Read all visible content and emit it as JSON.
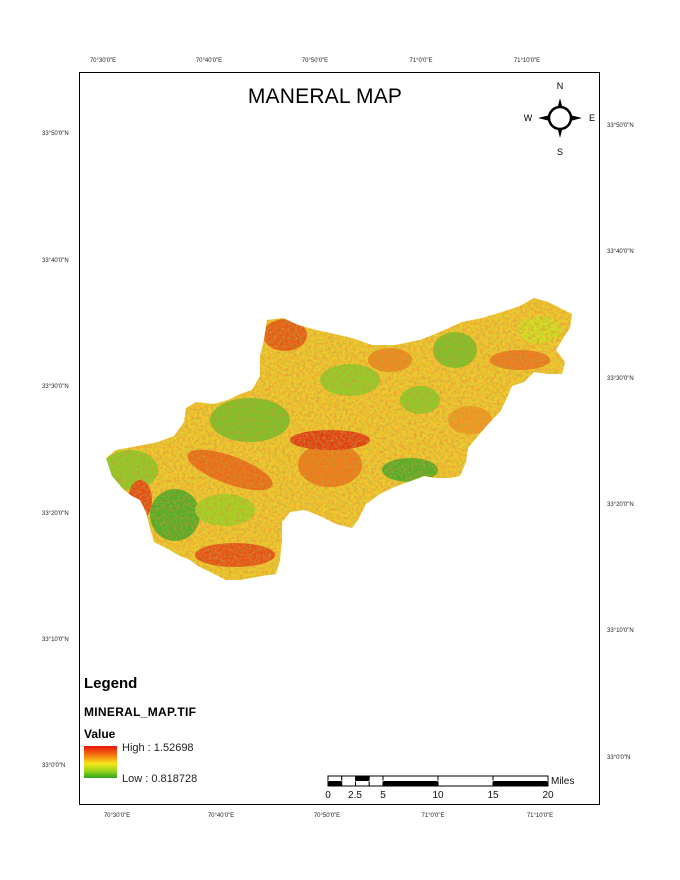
{
  "map": {
    "title": "MANERAL MAP",
    "grid": {
      "top_labels": [
        "70°30'0\"E",
        "70°40'0\"E",
        "70°50'0\"E",
        "71°0'0\"E",
        "71°10'0\"E"
      ],
      "bottom_labels": [
        "70°30'0\"E",
        "70°40'0\"E",
        "70°50'0\"E",
        "71°0'0\"E",
        "71°10'0\"E"
      ],
      "left_labels": [
        "33°50'0\"N",
        "33°40'0\"N",
        "33°30'0\"N",
        "33°20'0\"N",
        "33°10'0\"N",
        "33°0'0\"N"
      ],
      "right_labels": [
        "33°50'0\"N",
        "33°40'0\"N",
        "33°30'0\"N",
        "33°20'0\"N",
        "33°10'0\"N",
        "33°0'0\"N"
      ]
    },
    "north_arrow": {
      "n": "N",
      "s": "S",
      "e": "E",
      "w": "W"
    },
    "legend": {
      "title": "Legend",
      "layer": "MINERAL_MAP.TIF",
      "field": "Value",
      "high": "High : 1.52698",
      "low": "Low : 0.818728",
      "colors": {
        "high": "#e8100a",
        "mid": "#f7e51a",
        "low": "#2ea51c"
      }
    },
    "scale_bar": {
      "labels": [
        "0",
        "2.5",
        "5",
        "10",
        "15",
        "20"
      ],
      "unit": "Miles"
    }
  }
}
